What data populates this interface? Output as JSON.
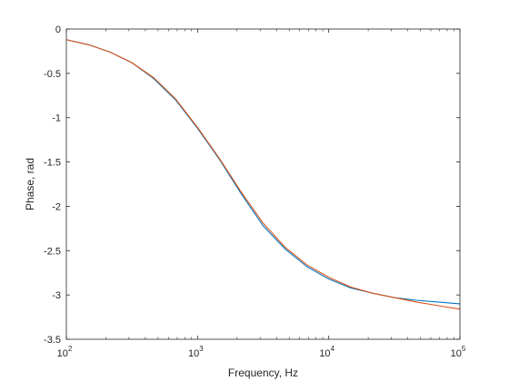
{
  "chart_data": {
    "type": "line",
    "xlabel": "Frequency, Hz",
    "ylabel": "Phase, rad",
    "xscale": "log",
    "xlim": [
      100,
      100000
    ],
    "ylim": [
      -3.5,
      0
    ],
    "grid": false,
    "box": true,
    "x_ticks": [
      {
        "base": "10",
        "exp": "2"
      },
      {
        "base": "10",
        "exp": "3"
      },
      {
        "base": "10",
        "exp": "4"
      },
      {
        "base": "10",
        "exp": "5"
      }
    ],
    "x_tick_values": [
      100,
      1000,
      10000,
      100000
    ],
    "y_ticks": [
      "0",
      "-0.5",
      "-1",
      "-1.5",
      "-2",
      "-2.5",
      "-3",
      "-3.5"
    ],
    "y_tick_values": [
      0,
      -0.5,
      -1,
      -1.5,
      -2,
      -2.5,
      -3,
      -3.5
    ],
    "series": [
      {
        "color": "#0072BD",
        "x": [
          100,
          150,
          215,
          316,
          464,
          681,
          1000,
          1468,
          2154,
          3162,
          4642,
          6813,
          10000,
          14678,
          21544,
          31623,
          46416,
          68129,
          100000
        ],
        "y": [
          -0.12,
          -0.18,
          -0.26,
          -0.38,
          -0.56,
          -0.8,
          -1.12,
          -1.47,
          -1.86,
          -2.22,
          -2.48,
          -2.68,
          -2.82,
          -2.92,
          -2.98,
          -3.03,
          -3.06,
          -3.08,
          -3.1
        ]
      },
      {
        "color": "#D95319",
        "x": [
          100,
          150,
          215,
          316,
          464,
          681,
          1000,
          1468,
          2154,
          3162,
          4642,
          6813,
          10000,
          14678,
          21544,
          31623,
          46416,
          68129,
          100000
        ],
        "y": [
          -0.12,
          -0.18,
          -0.26,
          -0.38,
          -0.55,
          -0.79,
          -1.11,
          -1.46,
          -1.84,
          -2.19,
          -2.46,
          -2.66,
          -2.8,
          -2.91,
          -2.98,
          -3.03,
          -3.08,
          -3.12,
          -3.16
        ]
      }
    ]
  }
}
